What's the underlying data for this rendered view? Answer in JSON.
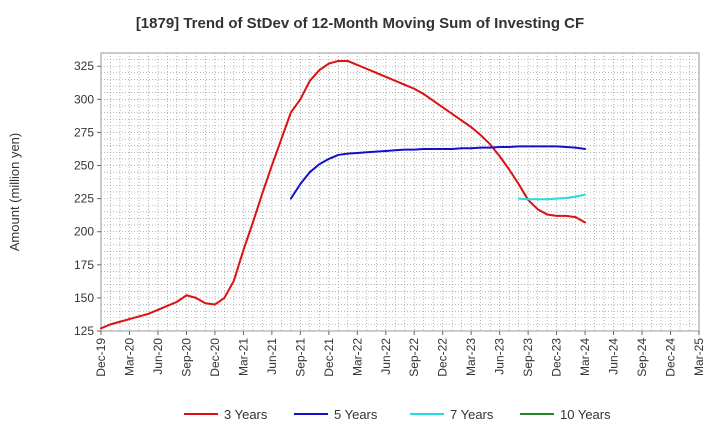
{
  "chart_data": {
    "type": "line",
    "title": "[1879]  Trend of StDev of 12-Month Moving Sum of Investing CF",
    "xlabel": "",
    "ylabel": "Amount (million yen)",
    "ylim": [
      125,
      335
    ],
    "yticks": [
      125,
      150,
      175,
      200,
      225,
      250,
      275,
      300,
      325
    ],
    "grid": true,
    "legend_position": "bottom",
    "x_categories": [
      "Dec-19",
      "Mar-20",
      "Jun-20",
      "Sep-20",
      "Dec-20",
      "Mar-21",
      "Jun-21",
      "Sep-21",
      "Dec-21",
      "Mar-22",
      "Jun-22",
      "Sep-22",
      "Dec-22",
      "Mar-23",
      "Jun-23",
      "Sep-23",
      "Dec-23",
      "Mar-24",
      "Jun-24",
      "Sep-24",
      "Dec-24",
      "Mar-25"
    ],
    "series": [
      {
        "name": "3 Years",
        "color": "#dd1111",
        "points": [
          {
            "month": "Dec-19",
            "value": 127
          },
          {
            "month": "Jan-20",
            "value": 130
          },
          {
            "month": "Feb-20",
            "value": 132
          },
          {
            "month": "Mar-20",
            "value": 134
          },
          {
            "month": "Apr-20",
            "value": 136
          },
          {
            "month": "May-20",
            "value": 138
          },
          {
            "month": "Jun-20",
            "value": 141
          },
          {
            "month": "Jul-20",
            "value": 144
          },
          {
            "month": "Aug-20",
            "value": 147
          },
          {
            "month": "Sep-20",
            "value": 152
          },
          {
            "month": "Oct-20",
            "value": 150
          },
          {
            "month": "Nov-20",
            "value": 146
          },
          {
            "month": "Dec-20",
            "value": 145
          },
          {
            "month": "Jan-21",
            "value": 150
          },
          {
            "month": "Feb-21",
            "value": 163
          },
          {
            "month": "Mar-21",
            "value": 186
          },
          {
            "month": "Apr-21",
            "value": 207
          },
          {
            "month": "May-21",
            "value": 229
          },
          {
            "month": "Jun-21",
            "value": 250
          },
          {
            "month": "Jul-21",
            "value": 270
          },
          {
            "month": "Aug-21",
            "value": 290
          },
          {
            "month": "Sep-21",
            "value": 300
          },
          {
            "month": "Oct-21",
            "value": 314
          },
          {
            "month": "Nov-21",
            "value": 322
          },
          {
            "month": "Dec-21",
            "value": 327
          },
          {
            "month": "Jan-22",
            "value": 329
          },
          {
            "month": "Feb-22",
            "value": 329
          },
          {
            "month": "Mar-22",
            "value": 326
          },
          {
            "month": "Apr-22",
            "value": 323
          },
          {
            "month": "May-22",
            "value": 320
          },
          {
            "month": "Jun-22",
            "value": 317
          },
          {
            "month": "Jul-22",
            "value": 314
          },
          {
            "month": "Aug-22",
            "value": 311
          },
          {
            "month": "Sep-22",
            "value": 308
          },
          {
            "month": "Oct-22",
            "value": 304
          },
          {
            "month": "Nov-22",
            "value": 299
          },
          {
            "month": "Dec-22",
            "value": 294
          },
          {
            "month": "Jan-23",
            "value": 289
          },
          {
            "month": "Feb-23",
            "value": 284
          },
          {
            "month": "Mar-23",
            "value": 279
          },
          {
            "month": "Apr-23",
            "value": 273
          },
          {
            "month": "May-23",
            "value": 266
          },
          {
            "month": "Jun-23",
            "value": 257
          },
          {
            "month": "Jul-23",
            "value": 247
          },
          {
            "month": "Aug-23",
            "value": 236
          },
          {
            "month": "Sep-23",
            "value": 224
          },
          {
            "month": "Oct-23",
            "value": 217
          },
          {
            "month": "Nov-23",
            "value": 213
          },
          {
            "month": "Dec-23",
            "value": 212
          },
          {
            "month": "Jan-24",
            "value": 212
          },
          {
            "month": "Feb-24",
            "value": 211
          },
          {
            "month": "Mar-24",
            "value": 207
          }
        ]
      },
      {
        "name": "5 Years",
        "color": "#1111cc",
        "points": [
          {
            "month": "Aug-21",
            "value": 225
          },
          {
            "month": "Sep-21",
            "value": 236
          },
          {
            "month": "Oct-21",
            "value": 245
          },
          {
            "month": "Nov-21",
            "value": 251
          },
          {
            "month": "Dec-21",
            "value": 255
          },
          {
            "month": "Jan-22",
            "value": 258
          },
          {
            "month": "Feb-22",
            "value": 259
          },
          {
            "month": "Mar-22",
            "value": 259.5
          },
          {
            "month": "Apr-22",
            "value": 260
          },
          {
            "month": "May-22",
            "value": 260.5
          },
          {
            "month": "Jun-22",
            "value": 261
          },
          {
            "month": "Jul-22",
            "value": 261.5
          },
          {
            "month": "Aug-22",
            "value": 262
          },
          {
            "month": "Sep-22",
            "value": 262
          },
          {
            "month": "Oct-22",
            "value": 262.5
          },
          {
            "month": "Nov-22",
            "value": 262.5
          },
          {
            "month": "Dec-22",
            "value": 262.5
          },
          {
            "month": "Jan-23",
            "value": 262.5
          },
          {
            "month": "Feb-23",
            "value": 263
          },
          {
            "month": "Mar-23",
            "value": 263
          },
          {
            "month": "Apr-23",
            "value": 263.5
          },
          {
            "month": "May-23",
            "value": 263.5
          },
          {
            "month": "Jun-23",
            "value": 264
          },
          {
            "month": "Jul-23",
            "value": 264
          },
          {
            "month": "Aug-23",
            "value": 264.5
          },
          {
            "month": "Sep-23",
            "value": 264.5
          },
          {
            "month": "Oct-23",
            "value": 264.5
          },
          {
            "month": "Nov-23",
            "value": 264.5
          },
          {
            "month": "Dec-23",
            "value": 264.5
          },
          {
            "month": "Jan-24",
            "value": 264
          },
          {
            "month": "Feb-24",
            "value": 263.5
          },
          {
            "month": "Mar-24",
            "value": 262.5
          }
        ]
      },
      {
        "name": "7 Years",
        "color": "#22dddd",
        "points": [
          {
            "month": "Aug-23",
            "value": 225
          },
          {
            "month": "Sep-23",
            "value": 224.5
          },
          {
            "month": "Oct-23",
            "value": 224.5
          },
          {
            "month": "Nov-23",
            "value": 224.5
          },
          {
            "month": "Dec-23",
            "value": 225
          },
          {
            "month": "Jan-24",
            "value": 225.5
          },
          {
            "month": "Feb-24",
            "value": 226.5
          },
          {
            "month": "Mar-24",
            "value": 228
          }
        ]
      },
      {
        "name": "10 Years",
        "color": "#228822",
        "points": []
      }
    ]
  }
}
